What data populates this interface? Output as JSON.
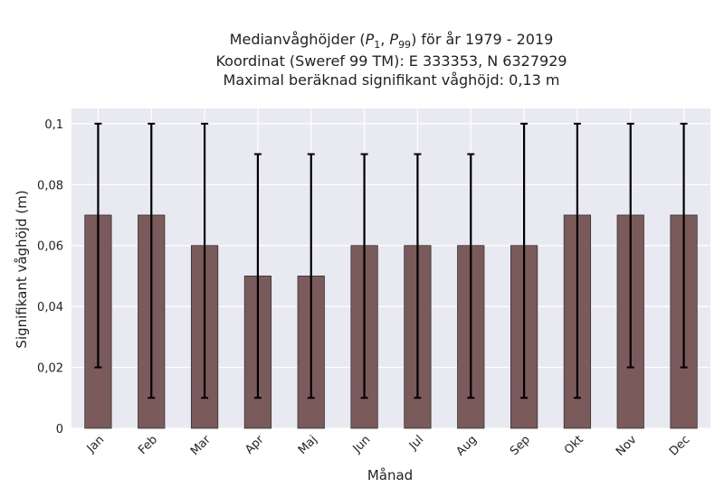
{
  "chart_data": {
    "type": "bar",
    "title": {
      "prefix": "Medianvåghöjder (",
      "p1": "P",
      "p1_sub": "1",
      "sep": ", ",
      "p99": "P",
      "p99_sub": "99",
      "suffix": ") för år 1979 - 2019"
    },
    "subtitle_lines": [
      "Koordinat (Sweref 99 TM): E 333353, N 6327929",
      "Maximal beräknad signifikant våghöjd: 0,13 m"
    ],
    "xlabel": "Månad",
    "ylabel": "Signifikant våghöjd (m)",
    "categories": [
      "Jan",
      "Feb",
      "Mar",
      "Apr",
      "Maj",
      "Jun",
      "Jul",
      "Aug",
      "Sep",
      "Okt",
      "Nov",
      "Dec"
    ],
    "values": [
      0.07,
      0.07,
      0.06,
      0.05,
      0.05,
      0.06,
      0.06,
      0.06,
      0.06,
      0.07,
      0.07,
      0.07
    ],
    "error_low": [
      0.02,
      0.01,
      0.01,
      0.01,
      0.01,
      0.01,
      0.01,
      0.01,
      0.01,
      0.01,
      0.02,
      0.02
    ],
    "error_high": [
      0.1,
      0.1,
      0.1,
      0.09,
      0.09,
      0.09,
      0.09,
      0.09,
      0.1,
      0.1,
      0.1,
      0.1
    ],
    "ylim": [
      0,
      0.105
    ],
    "yticks": [
      0,
      0.02,
      0.04,
      0.06,
      0.08,
      0.1
    ],
    "ytick_labels": [
      "0",
      "0,02",
      "0,04",
      "0,06",
      "0,08",
      "0,1"
    ],
    "grid": true,
    "colors": {
      "bar": "#7b5a5b",
      "bar_edge": "#333333",
      "error": "#000000",
      "background": "#e9e9f1",
      "grid": "#ffffff"
    }
  }
}
